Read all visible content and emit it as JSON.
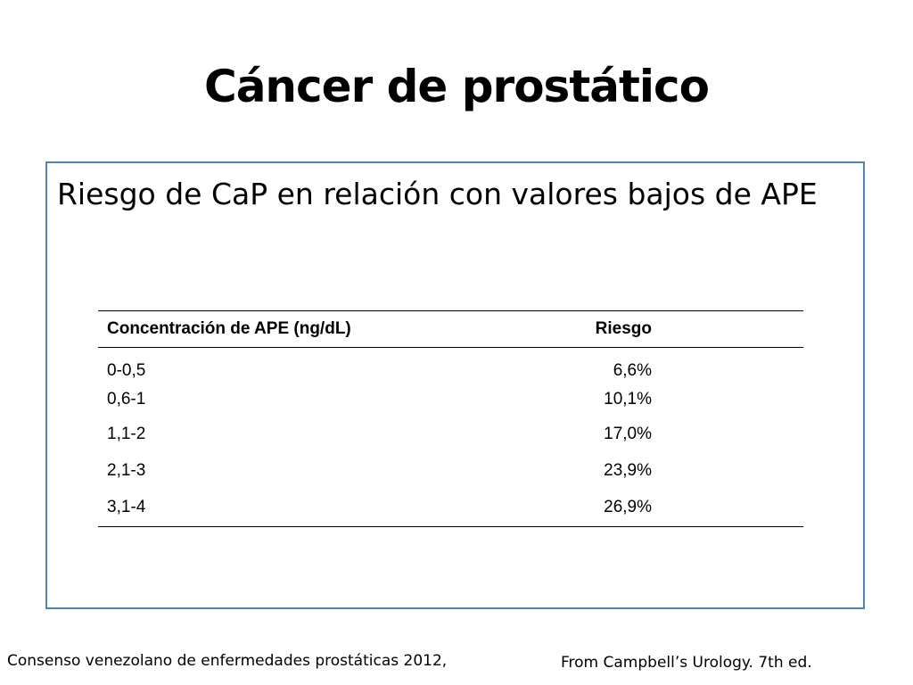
{
  "slide": {
    "title": "Cáncer de prostático",
    "subtitle": "Riesgo de CaP en relación con valores bajos de APE"
  },
  "table": {
    "headers": {
      "concentration": "Concentración de APE (ng/dL)",
      "risk": "Riesgo"
    },
    "rows": [
      {
        "concentration": "0-0,5",
        "risk": "6,6%"
      },
      {
        "concentration": "0,6-1",
        "risk": "10,1%"
      },
      {
        "concentration": "1,1-2",
        "risk": "17,0%"
      },
      {
        "concentration": "2,1-3",
        "risk": "23,9%"
      },
      {
        "concentration": "3,1-4",
        "risk": "26,9%"
      }
    ]
  },
  "footer": {
    "left": "Consenso venezolano de enfermedades prostáticas 2012,",
    "right": "From Campbell’s Urology. 7th ed."
  },
  "colors": {
    "box_border": "#4f81bd"
  }
}
